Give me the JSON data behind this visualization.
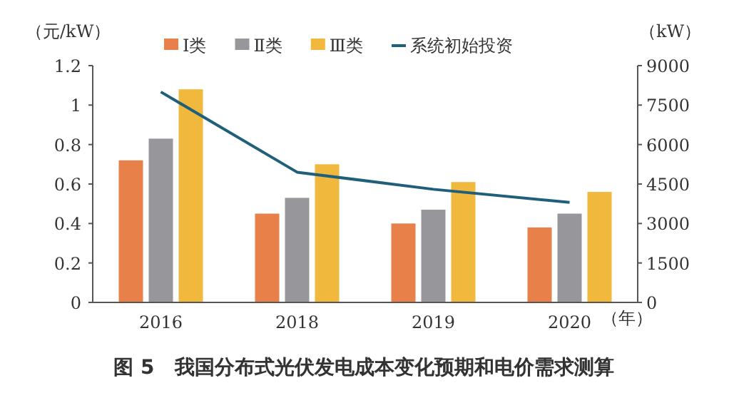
{
  "chart_data": {
    "type": "bar",
    "title": "图 5　我国分布式光伏发电成本变化预期和电价需求测算",
    "xlabel": "（年）",
    "ylabel": "（元/kW）",
    "y2label": "（kW）",
    "categories": [
      "2016",
      "2018",
      "2019",
      "2020"
    ],
    "series": [
      {
        "name": "Ⅰ类",
        "color": "#e8804a",
        "values": [
          0.72,
          0.45,
          0.4,
          0.38
        ]
      },
      {
        "name": "Ⅱ类",
        "color": "#97979b",
        "values": [
          0.83,
          0.53,
          0.47,
          0.45
        ]
      },
      {
        "name": "Ⅲ类",
        "color": "#f0b83c",
        "values": [
          1.08,
          0.7,
          0.61,
          0.56
        ]
      },
      {
        "name": "系统初始投资",
        "type": "line",
        "axis": "y2",
        "color": "#1f5f7a",
        "values": [
          8000,
          4950,
          4300,
          3800
        ]
      }
    ],
    "ylim": [
      0,
      1.2
    ],
    "yticks": [
      0,
      0.2,
      0.4,
      0.6,
      0.8,
      1,
      1.2
    ],
    "y2lim": [
      0,
      9000
    ],
    "y2ticks": [
      0,
      1500,
      3000,
      4500,
      6000,
      7500,
      9000
    ],
    "legend": "top",
    "grid": false
  }
}
